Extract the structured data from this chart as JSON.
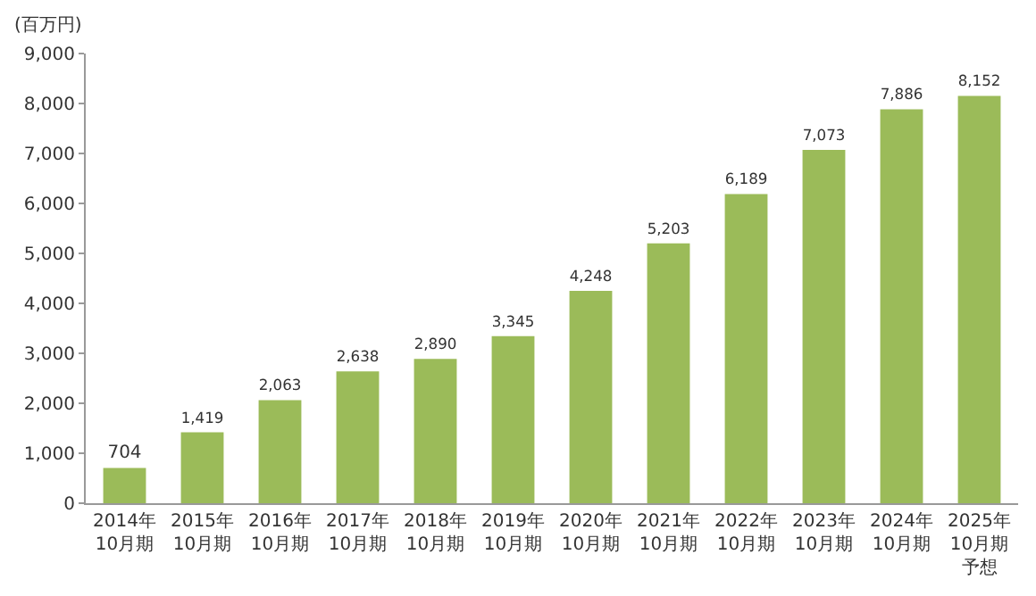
{
  "chart_data": {
    "type": "bar",
    "ylabel": "(百万円)",
    "categories": [
      "2014年\n10月期",
      "2015年\n10月期",
      "2016年\n10月期",
      "2017年\n10月期",
      "2018年\n10月期",
      "2019年\n10月期",
      "2020年\n10月期",
      "2021年\n10月期",
      "2022年\n10月期",
      "2023年\n10月期",
      "2024年\n10月期",
      "2025年\n10月期予想"
    ],
    "values": [
      704,
      1419,
      2063,
      2638,
      2890,
      3345,
      4248,
      5203,
      6189,
      7073,
      7886,
      8152
    ],
    "value_labels": [
      "704",
      "1,419",
      "2,063",
      "2,638",
      "2,890",
      "3,345",
      "4,248",
      "5,203",
      "6,189",
      "7,073",
      "7,886",
      "8,152"
    ],
    "color": "#9bbb59",
    "ylim": [
      0,
      9000
    ],
    "yticks": [
      0,
      {
        "value": 1000,
        "label": "1,000"
      },
      {
        "value": 2000,
        "label": "2,000"
      },
      {
        "value": 3000,
        "label": "3,000"
      },
      {
        "value": 4000,
        "label": "4,000"
      },
      {
        "value": 5000,
        "label": "5,000"
      },
      {
        "value": 6000,
        "label": "6,000"
      },
      {
        "value": 7000,
        "label": "7,000"
      },
      {
        "value": 8000,
        "label": "8,000"
      },
      {
        "value": 9000,
        "label": "9,000"
      }
    ],
    "grid": false
  }
}
